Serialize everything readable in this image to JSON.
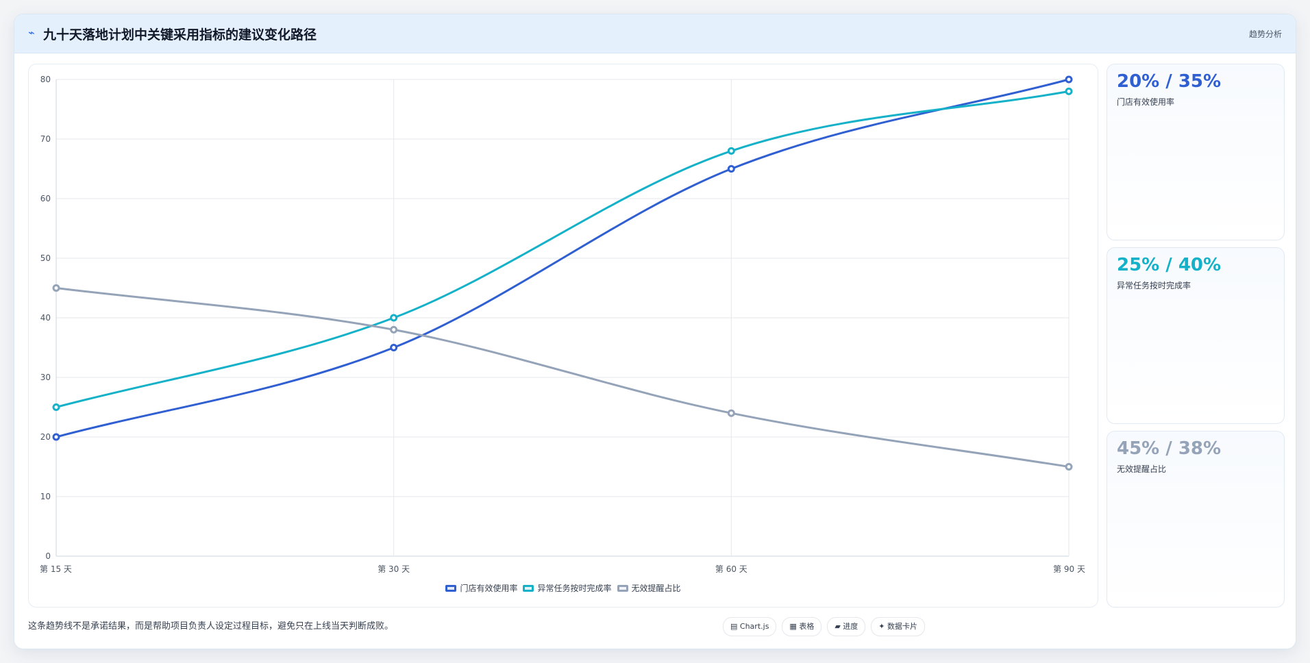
{
  "header": {
    "icon": "chart-line-icon",
    "title": "九十天落地计划中关键采用指标的建议变化路径",
    "tag": "趋势分析"
  },
  "stats": [
    {
      "value": "20% / 35%",
      "label": "门店有效使用率",
      "color": "#2f5fd1"
    },
    {
      "value": "25% / 40%",
      "label": "异常任务按时完成率",
      "color": "#14b1c8"
    },
    {
      "value": "45% / 38%",
      "label": "无效提醒占比",
      "color": "#94a3b8"
    }
  ],
  "footer": {
    "note": "这条趋势线不是承诺结果，而是帮助项目负责人设定过程目标，避免只在上线当天判断成败。",
    "chips": [
      {
        "icon": "▤",
        "label": "Chart.js"
      },
      {
        "icon": "▦",
        "label": "表格"
      },
      {
        "icon": "▰",
        "label": "进度"
      },
      {
        "icon": "✦",
        "label": "数据卡片"
      }
    ]
  },
  "chart_data": {
    "type": "line",
    "categories": [
      "第 15 天",
      "第 30 天",
      "第 60 天",
      "第 90 天"
    ],
    "series": [
      {
        "name": "门店有效使用率",
        "values": [
          20,
          35,
          65,
          80
        ],
        "color": "#2f5fd1"
      },
      {
        "name": "异常任务按时完成率",
        "values": [
          25,
          40,
          68,
          78
        ],
        "color": "#14b1c8"
      },
      {
        "name": "无效提醒占比",
        "values": [
          45,
          38,
          24,
          15
        ],
        "color": "#94a3b8"
      }
    ],
    "ylim": [
      0,
      80
    ],
    "yticks": [
      0,
      10,
      20,
      30,
      40,
      50,
      60,
      70,
      80
    ],
    "grid": true,
    "legend": "bottom-center"
  }
}
